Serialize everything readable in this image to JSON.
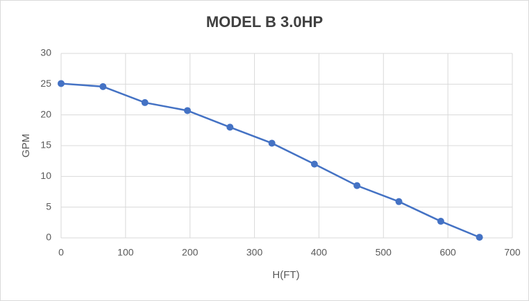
{
  "chart_data": {
    "type": "line",
    "title": "MODEL B 3.0HP",
    "x_label": "H(FT)",
    "y_label": "GPM",
    "x": [
      0,
      65,
      130,
      196,
      262,
      327,
      393,
      459,
      524,
      589,
      649
    ],
    "series": [
      {
        "name": "GPM",
        "color": "#4472c4",
        "values": [
          25.1,
          24.6,
          22.0,
          20.7,
          18.0,
          15.4,
          12.0,
          8.5,
          5.9,
          2.7,
          0.1
        ]
      }
    ],
    "xlim": [
      0,
      700
    ],
    "xticks": [
      0,
      100,
      200,
      300,
      400,
      500,
      600,
      700
    ],
    "ylim": [
      0,
      30
    ],
    "yticks": [
      0,
      5,
      10,
      15,
      20,
      25,
      30
    ],
    "grid": true
  }
}
